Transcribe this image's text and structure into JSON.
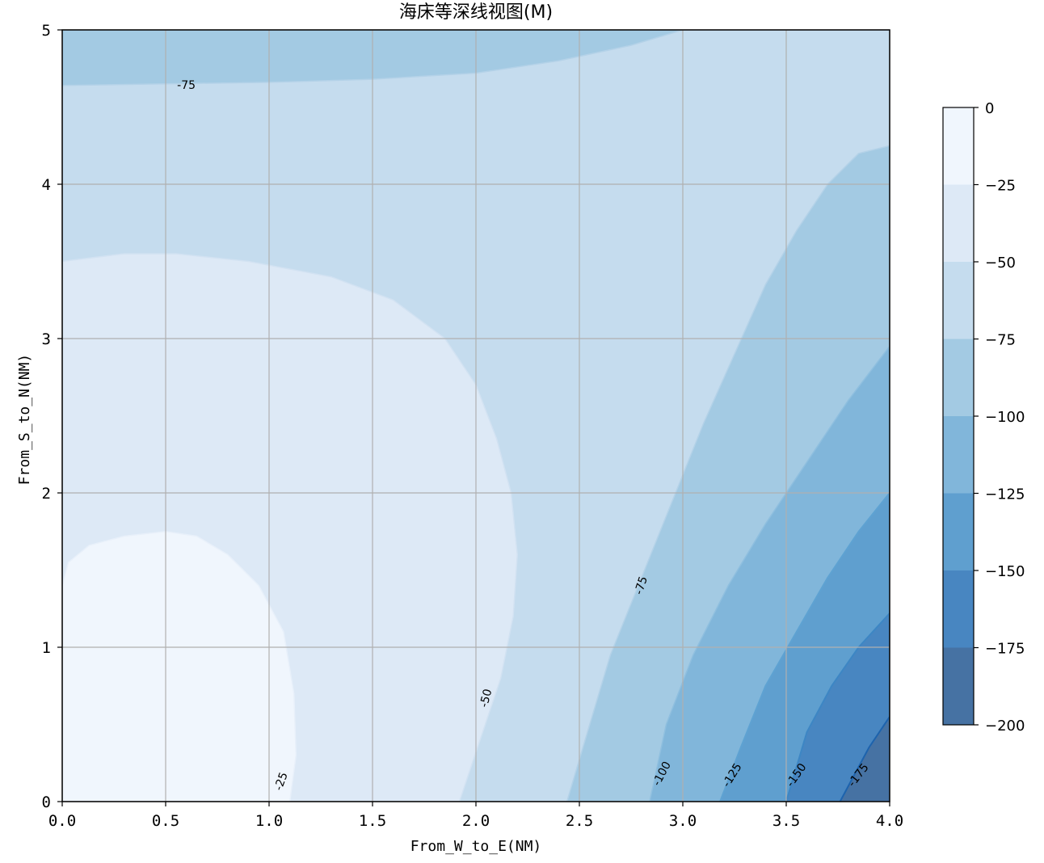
{
  "chart_data": {
    "type": "contour",
    "title": "海床等深线视图(M)",
    "xlabel": "From_W_to_E(NM)",
    "ylabel": "From_S_to_N(NM)",
    "xlim": [
      0,
      4
    ],
    "ylim": [
      0,
      5
    ],
    "x_ticks": [
      0.0,
      0.5,
      1.0,
      1.5,
      2.0,
      2.5,
      3.0,
      3.5,
      4.0
    ],
    "x_tick_labels": [
      "0.0",
      "0.5",
      "1.0",
      "1.5",
      "2.0",
      "2.5",
      "3.0",
      "3.5",
      "4.0"
    ],
    "y_ticks": [
      0,
      1,
      2,
      3,
      4,
      5
    ],
    "y_tick_labels": [
      "0",
      "1",
      "2",
      "3",
      "4",
      "5"
    ],
    "grid": true,
    "colormap": "Blues",
    "levels": [
      0,
      -25,
      -50,
      -75,
      -100,
      -125,
      -150,
      -175,
      -200
    ],
    "level_colors": [
      "#f0f6fd",
      "#dde9f6",
      "#c5dcee",
      "#a3cae3",
      "#81b6da",
      "#5f9fcf",
      "#4886c1",
      "#4672a3"
    ],
    "colorbar": {
      "placement": "right",
      "tick_values": [
        0,
        -25,
        -50,
        -75,
        -100,
        -125,
        -150,
        -175,
        -200
      ],
      "tick_labels": [
        "0",
        "−25",
        "−50",
        "−75",
        "−100",
        "−125",
        "−150",
        "−175",
        "−200"
      ]
    },
    "contour_labels": [
      {
        "text": "-75",
        "x": 0.6,
        "y": 4.64,
        "angle": 0
      },
      {
        "text": "-75",
        "x": 2.8,
        "y": 1.4,
        "angle": -72
      },
      {
        "text": "-50",
        "x": 2.05,
        "y": 0.67,
        "angle": -75
      },
      {
        "text": "-25",
        "x": 1.06,
        "y": 0.13,
        "angle": -70
      },
      {
        "text": "-100",
        "x": 2.9,
        "y": 0.18,
        "angle": -62
      },
      {
        "text": "-125",
        "x": 3.24,
        "y": 0.17,
        "angle": -58
      },
      {
        "text": "-150",
        "x": 3.55,
        "y": 0.17,
        "angle": -55
      },
      {
        "text": "-175",
        "x": 3.85,
        "y": 0.17,
        "angle": -52
      }
    ],
    "regions": [
      {
        "depth_band": "0 to -25",
        "boundary": [
          [
            0,
            1.4
          ],
          [
            0.03,
            1.55
          ],
          [
            0.13,
            1.66
          ],
          [
            0.3,
            1.72
          ],
          [
            0.5,
            1.75
          ],
          [
            0.65,
            1.72
          ],
          [
            0.8,
            1.6
          ],
          [
            0.95,
            1.4
          ],
          [
            1.07,
            1.1
          ],
          [
            1.12,
            0.7
          ],
          [
            1.13,
            0.3
          ],
          [
            1.1,
            0
          ]
        ]
      },
      {
        "depth_band": "-25 to -50",
        "boundary": [
          [
            0,
            3.5
          ],
          [
            0.3,
            3.55
          ],
          [
            0.55,
            3.55
          ],
          [
            0.9,
            3.5
          ],
          [
            1.3,
            3.4
          ],
          [
            1.6,
            3.25
          ],
          [
            1.85,
            3.0
          ],
          [
            2.0,
            2.7
          ],
          [
            2.1,
            2.35
          ],
          [
            2.17,
            2.0
          ],
          [
            2.2,
            1.6
          ],
          [
            2.18,
            1.2
          ],
          [
            2.12,
            0.8
          ],
          [
            2.02,
            0.4
          ],
          [
            1.92,
            0
          ]
        ]
      },
      {
        "depth_band": "-50 to -75",
        "top_boundary": [
          [
            0,
            4.64
          ],
          [
            0.5,
            4.65
          ],
          [
            1.0,
            4.66
          ],
          [
            1.5,
            4.68
          ],
          [
            2.0,
            4.72
          ],
          [
            2.4,
            4.8
          ],
          [
            2.75,
            4.9
          ],
          [
            3.0,
            5.0
          ]
        ],
        "right_boundary": [
          [
            4,
            4.25
          ],
          [
            3.85,
            4.2
          ],
          [
            3.7,
            4.0
          ],
          [
            3.55,
            3.7
          ],
          [
            3.4,
            3.35
          ],
          [
            3.25,
            2.9
          ],
          [
            3.1,
            2.45
          ],
          [
            2.95,
            1.95
          ],
          [
            2.8,
            1.45
          ],
          [
            2.65,
            0.95
          ],
          [
            2.55,
            0.5
          ],
          [
            2.44,
            0
          ]
        ]
      },
      {
        "depth_band": "-75 to -100",
        "boundary": [
          [
            4,
            2.95
          ],
          [
            3.8,
            2.6
          ],
          [
            3.6,
            2.2
          ],
          [
            3.4,
            1.8
          ],
          [
            3.22,
            1.4
          ],
          [
            3.05,
            0.95
          ],
          [
            2.92,
            0.5
          ],
          [
            2.84,
            0
          ]
        ]
      },
      {
        "depth_band": "-100 to -125",
        "boundary": [
          [
            4,
            2.0
          ],
          [
            3.85,
            1.75
          ],
          [
            3.7,
            1.45
          ],
          [
            3.55,
            1.1
          ],
          [
            3.4,
            0.75
          ],
          [
            3.28,
            0.35
          ],
          [
            3.18,
            0
          ]
        ]
      },
      {
        "depth_band": "-125 to -150",
        "boundary": [
          [
            4,
            1.22
          ],
          [
            3.85,
            1.0
          ],
          [
            3.72,
            0.75
          ],
          [
            3.6,
            0.45
          ],
          [
            3.5,
            0
          ]
        ]
      },
      {
        "depth_band": "-150 to -175",
        "boundary": [
          [
            4,
            0.55
          ],
          [
            3.9,
            0.35
          ],
          [
            3.82,
            0.15
          ],
          [
            3.76,
            0
          ]
        ]
      }
    ]
  }
}
